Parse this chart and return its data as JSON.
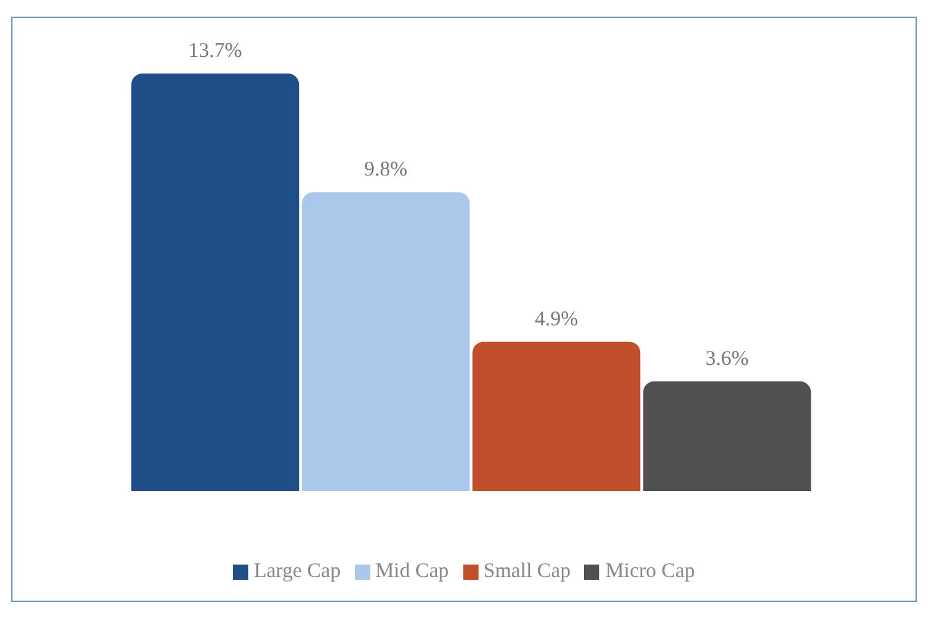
{
  "chart_data": {
    "type": "bar",
    "categories": [
      null
    ],
    "series": [
      {
        "name": "Large Cap",
        "color": "#1f4e89",
        "values": [
          13.7
        ],
        "value_labels": [
          "13.7%"
        ]
      },
      {
        "name": "Mid Cap",
        "color": "#a9c8ea",
        "values": [
          9.8
        ],
        "value_labels": [
          "9.8%"
        ]
      },
      {
        "name": "Small Cap",
        "color": "#c0502b",
        "values": [
          4.9
        ],
        "value_labels": [
          "4.9%"
        ]
      },
      {
        "name": "Micro Cap",
        "color": "#505050",
        "values": [
          3.6
        ],
        "value_labels": [
          "3.6%"
        ]
      }
    ],
    "legend": "bottom"
  }
}
